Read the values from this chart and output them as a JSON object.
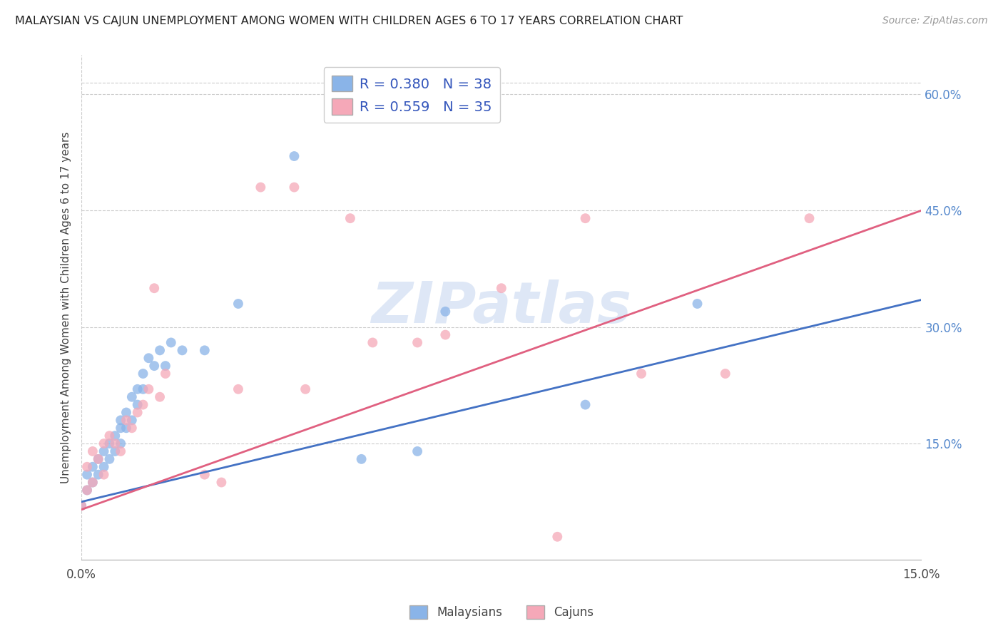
{
  "title": "MALAYSIAN VS CAJUN UNEMPLOYMENT AMONG WOMEN WITH CHILDREN AGES 6 TO 17 YEARS CORRELATION CHART",
  "source": "Source: ZipAtlas.com",
  "ylabel": "Unemployment Among Women with Children Ages 6 to 17 years",
  "xlim": [
    0.0,
    0.15
  ],
  "ylim": [
    0.0,
    0.65
  ],
  "y_ticks_right": [
    0.15,
    0.3,
    0.45,
    0.6
  ],
  "y_tick_labels_right": [
    "15.0%",
    "30.0%",
    "45.0%",
    "60.0%"
  ],
  "legend_labels": [
    "Malaysians",
    "Cajuns"
  ],
  "blue_color": "#8ab4e8",
  "pink_color": "#f5a8b8",
  "blue_line_color": "#4472c4",
  "pink_line_color": "#e06080",
  "watermark": "ZIPatlas",
  "blue_R": 0.38,
  "blue_N": 38,
  "pink_R": 0.559,
  "pink_N": 35,
  "blue_x": [
    0.0,
    0.001,
    0.001,
    0.002,
    0.002,
    0.003,
    0.003,
    0.004,
    0.004,
    0.005,
    0.005,
    0.006,
    0.006,
    0.007,
    0.007,
    0.007,
    0.008,
    0.008,
    0.009,
    0.009,
    0.01,
    0.01,
    0.011,
    0.011,
    0.012,
    0.013,
    0.014,
    0.015,
    0.016,
    0.018,
    0.022,
    0.028,
    0.038,
    0.05,
    0.06,
    0.065,
    0.09,
    0.11
  ],
  "blue_y": [
    0.07,
    0.09,
    0.11,
    0.1,
    0.12,
    0.11,
    0.13,
    0.12,
    0.14,
    0.13,
    0.15,
    0.14,
    0.16,
    0.15,
    0.17,
    0.18,
    0.17,
    0.19,
    0.18,
    0.21,
    0.2,
    0.22,
    0.22,
    0.24,
    0.26,
    0.25,
    0.27,
    0.25,
    0.28,
    0.27,
    0.27,
    0.33,
    0.52,
    0.13,
    0.14,
    0.32,
    0.2,
    0.33
  ],
  "pink_x": [
    0.0,
    0.001,
    0.001,
    0.002,
    0.002,
    0.003,
    0.004,
    0.004,
    0.005,
    0.006,
    0.007,
    0.008,
    0.009,
    0.01,
    0.011,
    0.012,
    0.013,
    0.014,
    0.015,
    0.022,
    0.025,
    0.028,
    0.032,
    0.038,
    0.04,
    0.048,
    0.052,
    0.06,
    0.065,
    0.075,
    0.085,
    0.09,
    0.1,
    0.115,
    0.13
  ],
  "pink_y": [
    0.07,
    0.09,
    0.12,
    0.1,
    0.14,
    0.13,
    0.11,
    0.15,
    0.16,
    0.15,
    0.14,
    0.18,
    0.17,
    0.19,
    0.2,
    0.22,
    0.35,
    0.21,
    0.24,
    0.11,
    0.1,
    0.22,
    0.48,
    0.48,
    0.22,
    0.44,
    0.28,
    0.28,
    0.29,
    0.35,
    0.03,
    0.44,
    0.24,
    0.24,
    0.44
  ],
  "background_color": "#ffffff",
  "grid_color": "#cccccc",
  "blue_line_x0": 0.0,
  "blue_line_y0": 0.075,
  "blue_line_x1": 0.15,
  "blue_line_y1": 0.335,
  "pink_line_x0": 0.0,
  "pink_line_y0": 0.065,
  "pink_line_x1": 0.15,
  "pink_line_y1": 0.45
}
